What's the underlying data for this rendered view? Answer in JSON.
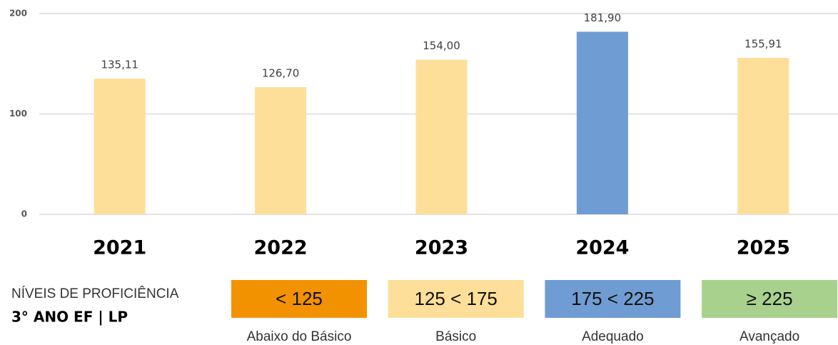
{
  "chart_data": {
    "type": "bar",
    "categories": [
      "2021",
      "2022",
      "2023",
      "2024",
      "2025"
    ],
    "values": [
      135.11,
      126.7,
      154.0,
      181.9,
      155.91
    ],
    "value_labels": [
      "135,11",
      "126,70",
      "154,00",
      "181,90",
      "155,91"
    ],
    "colors": [
      "#fddf99",
      "#fddf99",
      "#fddf99",
      "#6f9cd2",
      "#fddf99"
    ],
    "ylim": [
      0,
      200
    ],
    "yticks": [
      0,
      100,
      200
    ],
    "grid": true,
    "legend_title": "NÍVEIS DE PROFICIÊNCIA",
    "legend_subtitle": "3° ANO EF | LP",
    "levels": [
      {
        "range": "< 125",
        "name": "Abaixo do Básico",
        "color": "#f39200"
      },
      {
        "range": "125 < 175",
        "name": "Básico",
        "color": "#fddf99"
      },
      {
        "range": "175 < 225",
        "name": "Adequado",
        "color": "#6f9cd2"
      },
      {
        "range": "≥ 225",
        "name": "Avançado",
        "color": "#a9d18e"
      }
    ]
  }
}
